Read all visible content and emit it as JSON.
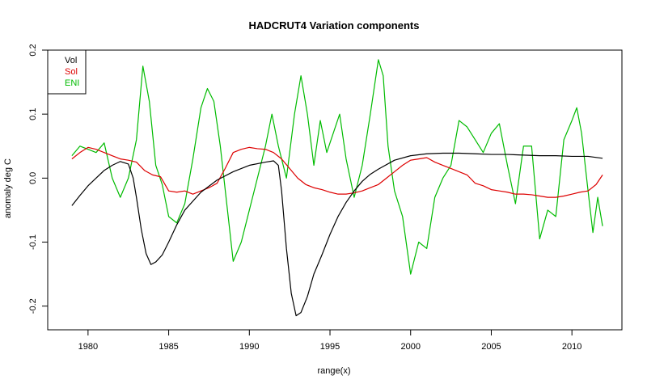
{
  "chart_data": {
    "type": "line",
    "title": "HADCRUT4 Variation components",
    "xlabel": "range(x)",
    "ylabel": "anomaly deg C",
    "xlim": [
      1977.5,
      2013.1
    ],
    "ylim": [
      -0.237,
      0.2
    ],
    "xticks": [
      1980,
      1985,
      1990,
      1995,
      2000,
      2005,
      2010
    ],
    "yticks": [
      -0.2,
      -0.1,
      0.0,
      0.1,
      0.2
    ],
    "ytick_labels": [
      "-0.2",
      "-0.1",
      "0.0",
      "0.1",
      "0.2"
    ],
    "grid": false,
    "legend_position": "top-left",
    "series": [
      {
        "name": "Vol",
        "color": "#000000",
        "x": [
          1979.0,
          1979.5,
          1980.0,
          1980.5,
          1981.0,
          1981.5,
          1982.0,
          1982.5,
          1982.8,
          1983.0,
          1983.3,
          1983.6,
          1983.9,
          1984.2,
          1984.6,
          1985.0,
          1985.5,
          1986.0,
          1987.0,
          1988.0,
          1989.0,
          1990.0,
          1991.0,
          1991.5,
          1991.8,
          1992.0,
          1992.3,
          1992.6,
          1992.9,
          1993.2,
          1993.6,
          1994.0,
          1994.5,
          1995.0,
          1995.5,
          1996.0,
          1996.5,
          1997.0,
          1997.5,
          1998.0,
          1999.0,
          2000.0,
          2001.0,
          2002.0,
          2003.0,
          2004.0,
          2005.0,
          2006.0,
          2007.0,
          2008.0,
          2009.0,
          2010.0,
          2011.0,
          2011.9
        ],
        "y": [
          -0.043,
          -0.027,
          -0.012,
          0.0,
          0.012,
          0.02,
          0.026,
          0.022,
          0.0,
          -0.03,
          -0.08,
          -0.118,
          -0.135,
          -0.131,
          -0.12,
          -0.1,
          -0.073,
          -0.05,
          -0.022,
          -0.003,
          0.01,
          0.02,
          0.025,
          0.027,
          0.02,
          -0.02,
          -0.11,
          -0.18,
          -0.215,
          -0.21,
          -0.185,
          -0.15,
          -0.12,
          -0.088,
          -0.06,
          -0.038,
          -0.02,
          -0.005,
          0.006,
          0.014,
          0.028,
          0.035,
          0.038,
          0.039,
          0.039,
          0.038,
          0.037,
          0.037,
          0.036,
          0.035,
          0.035,
          0.034,
          0.034,
          0.031
        ]
      },
      {
        "name": "Sol",
        "color": "#dd0000",
        "x": [
          1979.0,
          1979.5,
          1980.0,
          1980.5,
          1981.0,
          1981.5,
          1982.0,
          1982.5,
          1983.0,
          1983.5,
          1984.0,
          1984.5,
          1985.0,
          1985.5,
          1986.0,
          1986.5,
          1987.0,
          1987.5,
          1988.0,
          1988.5,
          1989.0,
          1989.5,
          1990.0,
          1990.5,
          1991.0,
          1991.5,
          1992.0,
          1992.5,
          1993.0,
          1993.5,
          1994.0,
          1994.5,
          1995.0,
          1995.5,
          1996.0,
          1996.5,
          1997.0,
          1997.5,
          1998.0,
          1998.5,
          1999.0,
          1999.5,
          2000.0,
          2000.5,
          2001.0,
          2001.5,
          2002.0,
          2002.5,
          2003.0,
          2003.5,
          2004.0,
          2004.5,
          2005.0,
          2005.5,
          2006.0,
          2006.5,
          2007.0,
          2007.5,
          2008.0,
          2008.5,
          2009.0,
          2009.5,
          2010.0,
          2010.5,
          2011.0,
          2011.5,
          2011.9
        ],
        "y": [
          0.03,
          0.04,
          0.048,
          0.045,
          0.04,
          0.035,
          0.03,
          0.028,
          0.025,
          0.012,
          0.005,
          0.002,
          -0.02,
          -0.022,
          -0.02,
          -0.025,
          -0.02,
          -0.015,
          -0.008,
          0.015,
          0.04,
          0.045,
          0.048,
          0.046,
          0.045,
          0.04,
          0.03,
          0.015,
          0.0,
          -0.01,
          -0.015,
          -0.018,
          -0.022,
          -0.025,
          -0.025,
          -0.023,
          -0.02,
          -0.015,
          -0.01,
          0.0,
          0.01,
          0.02,
          0.028,
          0.03,
          0.032,
          0.025,
          0.02,
          0.015,
          0.01,
          0.005,
          -0.008,
          -0.012,
          -0.018,
          -0.02,
          -0.022,
          -0.025,
          -0.025,
          -0.026,
          -0.028,
          -0.03,
          -0.03,
          -0.028,
          -0.025,
          -0.022,
          -0.02,
          -0.01,
          0.005
        ]
      },
      {
        "name": "ENI",
        "color": "#00bb00",
        "x": [
          1979.0,
          1979.5,
          1980.0,
          1980.5,
          1981.0,
          1981.5,
          1982.0,
          1982.5,
          1983.0,
          1983.4,
          1983.8,
          1984.2,
          1984.6,
          1985.0,
          1985.5,
          1986.0,
          1986.5,
          1987.0,
          1987.4,
          1987.8,
          1988.2,
          1988.6,
          1989.0,
          1989.5,
          1990.0,
          1990.5,
          1991.0,
          1991.4,
          1991.8,
          1992.3,
          1992.8,
          1993.2,
          1993.6,
          1994.0,
          1994.4,
          1994.8,
          1995.2,
          1995.6,
          1996.0,
          1996.5,
          1997.0,
          1997.5,
          1998.0,
          1998.3,
          1998.6,
          1999.0,
          1999.5,
          2000.0,
          2000.5,
          2001.0,
          2001.5,
          2002.0,
          2002.5,
          2003.0,
          2003.5,
          2004.0,
          2004.5,
          2005.0,
          2005.5,
          2006.0,
          2006.5,
          2007.0,
          2007.5,
          2008.0,
          2008.5,
          2009.0,
          2009.5,
          2010.0,
          2010.3,
          2010.6,
          2011.0,
          2011.3,
          2011.6,
          2011.9
        ],
        "y": [
          0.035,
          0.05,
          0.045,
          0.04,
          0.055,
          0.0,
          -0.03,
          0.0,
          0.06,
          0.175,
          0.12,
          0.02,
          -0.01,
          -0.06,
          -0.07,
          -0.04,
          0.03,
          0.11,
          0.14,
          0.12,
          0.05,
          -0.04,
          -0.13,
          -0.1,
          -0.05,
          0.0,
          0.05,
          0.1,
          0.05,
          0.0,
          0.1,
          0.16,
          0.1,
          0.02,
          0.09,
          0.04,
          0.07,
          0.1,
          0.03,
          -0.03,
          0.02,
          0.1,
          0.185,
          0.16,
          0.05,
          -0.02,
          -0.06,
          -0.15,
          -0.1,
          -0.11,
          -0.03,
          0.0,
          0.02,
          0.09,
          0.08,
          0.06,
          0.04,
          0.07,
          0.085,
          0.02,
          -0.04,
          0.05,
          0.05,
          -0.095,
          -0.05,
          -0.06,
          0.06,
          0.09,
          0.11,
          0.07,
          -0.02,
          -0.085,
          -0.03,
          -0.075
        ]
      }
    ]
  }
}
